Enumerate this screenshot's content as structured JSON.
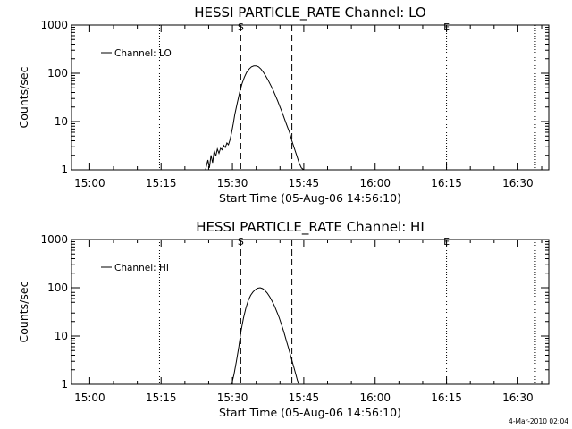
{
  "footer": {
    "timestamp": "4-Mar-2010 02:04"
  },
  "chart_data": [
    {
      "type": "line",
      "title": "HESSI PARTICLE_RATE Channel: LO",
      "xlabel": "Start Time (05-Aug-06 14:56:10)",
      "ylabel": "Counts/sec",
      "yscale": "log",
      "ylim": [
        1,
        1000
      ],
      "xlim": [
        "14:56:10",
        "16:36:30"
      ],
      "x_unit": "minutes",
      "xticks": [
        "15:00",
        "15:15",
        "15:30",
        "15:45",
        "16:00",
        "16:15",
        "16:30"
      ],
      "yticks": [
        "1",
        "10",
        "100",
        "1000"
      ],
      "grid": false,
      "legend_placement": "top-left",
      "legend": [
        "Channel: LO"
      ],
      "marker_labels": {
        "start": "S",
        "end": "E"
      },
      "markers": {
        "dotted": [
          "15:14:40",
          "16:15:00",
          "16:33:40"
        ],
        "dashed": [
          "15:31:45",
          "15:42:30"
        ],
        "start_label_at": "15:31:45",
        "end_label_at": "16:15:00"
      },
      "series": [
        {
          "name": "Channel: LO",
          "x": [
            "15:24:20",
            "15:24:50",
            "15:25:10",
            "15:25:30",
            "15:25:50",
            "15:26:10",
            "15:26:30",
            "15:26:50",
            "15:27:10",
            "15:27:30",
            "15:27:50",
            "15:28:10",
            "15:28:30",
            "15:28:50",
            "15:29:10",
            "15:29:30",
            "15:29:50",
            "15:30:10",
            "15:30:30",
            "15:31:00",
            "15:31:30",
            "15:32:00",
            "15:32:30",
            "15:33:00",
            "15:33:30",
            "15:34:00",
            "15:34:30",
            "15:35:00",
            "15:35:30",
            "15:36:00",
            "15:36:30",
            "15:37:00",
            "15:37:30",
            "15:38:00",
            "15:38:30",
            "15:39:00",
            "15:39:30",
            "15:40:00",
            "15:40:30",
            "15:41:00",
            "15:41:30",
            "15:42:00",
            "15:42:30",
            "15:43:00",
            "15:43:30",
            "15:44:00",
            "15:44:30",
            "15:45:00"
          ],
          "y": [
            1,
            1.6,
            1.1,
            2.0,
            1.4,
            2.5,
            1.9,
            2.7,
            2.2,
            2.8,
            2.6,
            3.2,
            2.9,
            3.6,
            3.3,
            4.2,
            6.0,
            9.0,
            14,
            24,
            40,
            60,
            83,
            105,
            122,
            136,
            142,
            142,
            136,
            122,
            105,
            88,
            72,
            58,
            46,
            35,
            27,
            20,
            15,
            11,
            8,
            6,
            4,
            2.8,
            2.0,
            1.4,
            1.1,
            1
          ]
        }
      ]
    },
    {
      "type": "line",
      "title": "HESSI PARTICLE_RATE Channel: HI",
      "xlabel": "Start Time (05-Aug-06 14:56:10)",
      "ylabel": "Counts/sec",
      "yscale": "log",
      "ylim": [
        1,
        1000
      ],
      "xlim": [
        "14:56:10",
        "16:36:30"
      ],
      "x_unit": "minutes",
      "xticks": [
        "15:00",
        "15:15",
        "15:30",
        "15:45",
        "16:00",
        "16:15",
        "16:30"
      ],
      "yticks": [
        "1",
        "10",
        "100",
        "1000"
      ],
      "grid": false,
      "legend_placement": "top-left",
      "legend": [
        "Channel: HI"
      ],
      "marker_labels": {
        "start": "S",
        "end": "E"
      },
      "markers": {
        "dotted": [
          "15:14:40",
          "16:15:00",
          "16:33:40"
        ],
        "dashed": [
          "15:31:45",
          "15:42:30"
        ],
        "start_label_at": "15:31:45",
        "end_label_at": "16:15:00"
      },
      "series": [
        {
          "name": "Channel: HI",
          "x": [
            "15:29:50",
            "15:30:20",
            "15:30:50",
            "15:31:20",
            "15:31:50",
            "15:32:20",
            "15:32:50",
            "15:33:20",
            "15:33:50",
            "15:34:20",
            "15:34:50",
            "15:35:20",
            "15:35:50",
            "15:36:20",
            "15:36:50",
            "15:37:20",
            "15:37:50",
            "15:38:20",
            "15:38:50",
            "15:39:20",
            "15:39:50",
            "15:40:20",
            "15:40:50",
            "15:41:20",
            "15:41:50",
            "15:42:20",
            "15:42:50",
            "15:43:20",
            "15:43:40",
            "15:44:00"
          ],
          "y": [
            1,
            1.6,
            3.0,
            6.0,
            13,
            24,
            38,
            55,
            70,
            82,
            92,
            98,
            100,
            96,
            88,
            77,
            65,
            53,
            42,
            32,
            24,
            17,
            12,
            8,
            5.5,
            3.6,
            2.4,
            1.6,
            1.2,
            1
          ]
        }
      ]
    }
  ]
}
